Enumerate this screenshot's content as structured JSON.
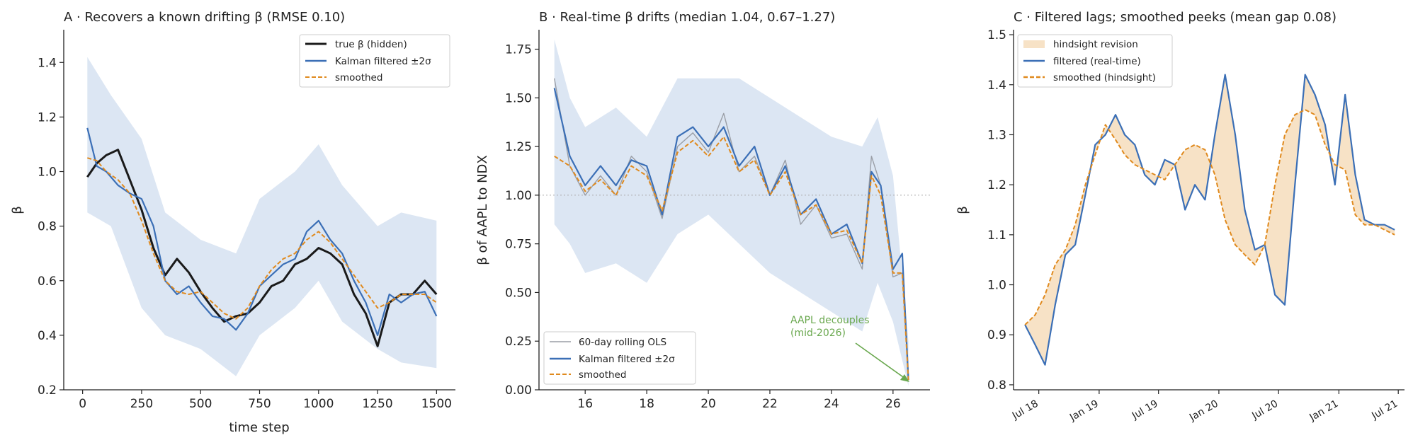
{
  "colors": {
    "true_line": "#1a1a1a",
    "kalman": "#3b6fb6",
    "band": "#dce6f3",
    "smoothed": "#e08a1e",
    "ols": "#9a9ea6",
    "revision": "#f7e2c6",
    "annotation": "#6aa84f",
    "reference": "#aaaaaa",
    "axis": "#222222"
  },
  "chart_data": [
    {
      "type": "line",
      "title": "A · Recovers a known drifting β (RMSE 0.10)",
      "xlabel": "time step",
      "ylabel": "β",
      "xlim": [
        -80,
        1580
      ],
      "ylim": [
        0.2,
        1.52
      ],
      "xticks": [
        0,
        250,
        500,
        750,
        1000,
        1250,
        1500
      ],
      "xtick_labels": [
        "0",
        "250",
        "500",
        "750",
        "1000",
        "1250",
        "1500"
      ],
      "yticks": [
        0.2,
        0.4,
        0.6,
        0.8,
        1.0,
        1.2,
        1.4
      ],
      "ytick_labels": [
        "0.2",
        "0.4",
        "0.6",
        "0.8",
        "1.0",
        "1.2",
        "1.4"
      ],
      "grid": false,
      "legend_position": "top-right",
      "band": {
        "name": "±2σ band",
        "x": [
          20,
          120,
          250,
          350,
          500,
          650,
          750,
          900,
          1000,
          1100,
          1250,
          1350,
          1500
        ],
        "lower": [
          0.85,
          0.8,
          0.5,
          0.4,
          0.35,
          0.25,
          0.4,
          0.5,
          0.6,
          0.45,
          0.35,
          0.3,
          0.28
        ],
        "upper": [
          1.42,
          1.28,
          1.12,
          0.85,
          0.75,
          0.7,
          0.9,
          1.0,
          1.1,
          0.95,
          0.8,
          0.85,
          0.82
        ]
      },
      "series": [
        {
          "name": "true β (hidden)",
          "style": "solid-thick",
          "x": [
            20,
            60,
            100,
            150,
            200,
            250,
            300,
            350,
            400,
            450,
            500,
            550,
            600,
            650,
            700,
            750,
            800,
            850,
            900,
            950,
            1000,
            1050,
            1100,
            1150,
            1200,
            1250,
            1300,
            1350,
            1400,
            1450,
            1500
          ],
          "values": [
            0.98,
            1.03,
            1.06,
            1.08,
            0.97,
            0.86,
            0.72,
            0.62,
            0.68,
            0.63,
            0.56,
            0.5,
            0.45,
            0.47,
            0.48,
            0.52,
            0.58,
            0.6,
            0.66,
            0.68,
            0.72,
            0.7,
            0.66,
            0.55,
            0.48,
            0.36,
            0.52,
            0.55,
            0.55,
            0.6,
            0.55
          ]
        },
        {
          "name": "Kalman filtered ±2σ",
          "style": "solid",
          "x": [
            20,
            60,
            100,
            150,
            200,
            250,
            300,
            350,
            400,
            450,
            500,
            550,
            600,
            650,
            700,
            750,
            800,
            850,
            900,
            950,
            1000,
            1050,
            1100,
            1150,
            1200,
            1250,
            1300,
            1350,
            1400,
            1450,
            1500
          ],
          "values": [
            1.16,
            1.02,
            1.0,
            0.95,
            0.92,
            0.9,
            0.8,
            0.6,
            0.55,
            0.58,
            0.52,
            0.47,
            0.46,
            0.42,
            0.48,
            0.58,
            0.62,
            0.66,
            0.68,
            0.78,
            0.82,
            0.75,
            0.7,
            0.6,
            0.52,
            0.4,
            0.55,
            0.52,
            0.55,
            0.56,
            0.47
          ]
        },
        {
          "name": "smoothed",
          "style": "dashed",
          "x": [
            20,
            60,
            100,
            150,
            200,
            250,
            300,
            350,
            400,
            450,
            500,
            550,
            600,
            650,
            700,
            750,
            800,
            850,
            900,
            950,
            1000,
            1050,
            1100,
            1150,
            1200,
            1250,
            1300,
            1350,
            1400,
            1450,
            1500
          ],
          "values": [
            1.05,
            1.04,
            1.0,
            0.97,
            0.92,
            0.82,
            0.7,
            0.6,
            0.56,
            0.55,
            0.56,
            0.52,
            0.48,
            0.46,
            0.5,
            0.58,
            0.64,
            0.68,
            0.7,
            0.75,
            0.78,
            0.74,
            0.68,
            0.62,
            0.56,
            0.5,
            0.52,
            0.55,
            0.55,
            0.55,
            0.52
          ]
        }
      ]
    },
    {
      "type": "line",
      "title": "B · Real-time β drifts (median 1.04, 0.67–1.27)",
      "xlabel": "",
      "ylabel": "β of AAPL to NDX",
      "xlim": [
        14.5,
        27.2
      ],
      "ylim": [
        0.0,
        1.85
      ],
      "xticks": [
        16,
        18,
        20,
        22,
        24,
        26
      ],
      "xtick_labels": [
        "16",
        "18",
        "20",
        "22",
        "24",
        "26"
      ],
      "yticks": [
        0.0,
        0.25,
        0.5,
        0.75,
        1.0,
        1.25,
        1.5,
        1.75
      ],
      "ytick_labels": [
        "0.00",
        "0.25",
        "0.50",
        "0.75",
        "1.00",
        "1.25",
        "1.50",
        "1.75"
      ],
      "grid": false,
      "reference_line": 1.0,
      "legend_position": "bottom-left",
      "annotation": {
        "text_lines": [
          "AAPL decouples",
          "(mid-2026)"
        ],
        "point": [
          26.5,
          0.04
        ],
        "text_at": [
          22.6,
          0.32
        ]
      },
      "band": {
        "name": "±2σ band",
        "x": [
          15.0,
          15.5,
          16.0,
          17.0,
          18.0,
          19.0,
          20.0,
          21.0,
          22.0,
          23.0,
          24.0,
          25.0,
          25.5,
          26.0,
          26.5
        ],
        "lower": [
          0.85,
          0.75,
          0.6,
          0.65,
          0.55,
          0.8,
          0.9,
          0.75,
          0.6,
          0.5,
          0.4,
          0.3,
          0.55,
          0.35,
          0.02
        ],
        "upper": [
          1.8,
          1.5,
          1.35,
          1.45,
          1.3,
          1.6,
          1.6,
          1.6,
          1.5,
          1.4,
          1.3,
          1.25,
          1.4,
          1.1,
          0.25
        ]
      },
      "series": [
        {
          "name": "60-day rolling OLS",
          "style": "thin",
          "x": [
            15.0,
            15.5,
            16.0,
            16.5,
            17.0,
            17.5,
            18.0,
            18.5,
            19.0,
            19.5,
            20.0,
            20.5,
            21.0,
            21.5,
            22.0,
            22.5,
            23.0,
            23.5,
            24.0,
            24.5,
            25.0,
            25.3,
            25.6,
            26.0,
            26.3,
            26.5
          ],
          "values": [
            1.6,
            1.15,
            1.0,
            1.1,
            1.0,
            1.2,
            1.12,
            0.88,
            1.25,
            1.32,
            1.22,
            1.42,
            1.12,
            1.2,
            1.0,
            1.18,
            0.85,
            0.95,
            0.78,
            0.8,
            0.62,
            1.2,
            1.05,
            0.58,
            0.6,
            0.06
          ]
        },
        {
          "name": "Kalman filtered ±2σ",
          "style": "solid",
          "x": [
            15.0,
            15.5,
            16.0,
            16.5,
            17.0,
            17.5,
            18.0,
            18.5,
            19.0,
            19.5,
            20.0,
            20.5,
            21.0,
            21.5,
            22.0,
            22.5,
            23.0,
            23.5,
            24.0,
            24.5,
            25.0,
            25.3,
            25.6,
            26.0,
            26.3,
            26.5
          ],
          "values": [
            1.55,
            1.2,
            1.05,
            1.15,
            1.05,
            1.18,
            1.15,
            0.9,
            1.3,
            1.35,
            1.25,
            1.35,
            1.15,
            1.25,
            1.0,
            1.15,
            0.9,
            0.98,
            0.8,
            0.85,
            0.65,
            1.12,
            1.05,
            0.62,
            0.7,
            0.05
          ]
        },
        {
          "name": "smoothed",
          "style": "dashed",
          "x": [
            15.0,
            15.5,
            16.0,
            16.5,
            17.0,
            17.5,
            18.0,
            18.5,
            19.0,
            19.5,
            20.0,
            20.5,
            21.0,
            21.5,
            22.0,
            22.5,
            23.0,
            23.5,
            24.0,
            24.5,
            25.0,
            25.3,
            25.6,
            26.0,
            26.3,
            26.5
          ],
          "values": [
            1.2,
            1.15,
            1.02,
            1.08,
            1.0,
            1.15,
            1.1,
            0.92,
            1.22,
            1.28,
            1.2,
            1.3,
            1.12,
            1.18,
            1.0,
            1.12,
            0.9,
            0.95,
            0.8,
            0.82,
            0.65,
            1.1,
            1.0,
            0.6,
            0.6,
            0.05
          ]
        }
      ]
    },
    {
      "type": "line",
      "title": "C · Filtered lags; smoothed peeks (mean gap 0.08)",
      "xlabel": "",
      "ylabel": "β",
      "xlim": [
        "2018-04-15",
        "2021-07-20"
      ],
      "ylim": [
        0.79,
        1.51
      ],
      "xticks": [
        "2018-07-01",
        "2019-01-01",
        "2019-07-01",
        "2020-01-01",
        "2020-07-01",
        "2021-01-01",
        "2021-07-01"
      ],
      "xtick_labels": [
        "Jul 18",
        "Jan 19",
        "Jul 19",
        "Jan 20",
        "Jul 20",
        "Jan 21",
        "Jul 21"
      ],
      "yticks": [
        0.8,
        0.9,
        1.0,
        1.1,
        1.2,
        1.3,
        1.4,
        1.5
      ],
      "ytick_labels": [
        "0.8",
        "0.9",
        "1.0",
        "1.1",
        "1.2",
        "1.3",
        "1.4",
        "1.5"
      ],
      "grid": false,
      "legend_position": "top-left",
      "revision_fill": {
        "name": "hindsight revision"
      },
      "series": [
        {
          "name": "filtered (real-time)",
          "style": "solid",
          "x": [
            "2018-05-20",
            "2018-06-20",
            "2018-07-20",
            "2018-08-20",
            "2018-09-20",
            "2018-10-20",
            "2018-11-20",
            "2018-12-20",
            "2019-01-20",
            "2019-02-20",
            "2019-03-20",
            "2019-04-20",
            "2019-05-20",
            "2019-06-20",
            "2019-07-20",
            "2019-08-20",
            "2019-09-20",
            "2019-10-20",
            "2019-11-20",
            "2019-12-20",
            "2020-01-20",
            "2020-02-20",
            "2020-03-20",
            "2020-04-20",
            "2020-05-20",
            "2020-06-20",
            "2020-07-20",
            "2020-08-20",
            "2020-09-20",
            "2020-10-20",
            "2020-11-20",
            "2020-12-20",
            "2021-01-20",
            "2021-02-20",
            "2021-03-20",
            "2021-04-20",
            "2021-05-20",
            "2021-06-20"
          ],
          "values": [
            0.92,
            0.88,
            0.84,
            0.96,
            1.06,
            1.08,
            1.18,
            1.28,
            1.3,
            1.34,
            1.3,
            1.28,
            1.22,
            1.2,
            1.25,
            1.24,
            1.15,
            1.2,
            1.17,
            1.3,
            1.42,
            1.3,
            1.15,
            1.07,
            1.08,
            0.98,
            0.96,
            1.2,
            1.42,
            1.38,
            1.32,
            1.2,
            1.38,
            1.22,
            1.13,
            1.12,
            1.12,
            1.11
          ]
        },
        {
          "name": "smoothed (hindsight)",
          "style": "dashed",
          "x": [
            "2018-05-20",
            "2018-06-20",
            "2018-07-20",
            "2018-08-20",
            "2018-09-20",
            "2018-10-20",
            "2018-11-20",
            "2018-12-20",
            "2019-01-20",
            "2019-02-20",
            "2019-03-20",
            "2019-04-20",
            "2019-05-20",
            "2019-06-20",
            "2019-07-20",
            "2019-08-20",
            "2019-09-20",
            "2019-10-20",
            "2019-11-20",
            "2019-12-20",
            "2020-01-20",
            "2020-02-20",
            "2020-03-20",
            "2020-04-20",
            "2020-05-20",
            "2020-06-20",
            "2020-07-20",
            "2020-08-20",
            "2020-09-20",
            "2020-10-20",
            "2020-11-20",
            "2020-12-20",
            "2021-01-20",
            "2021-02-20",
            "2021-03-20",
            "2021-04-20",
            "2021-05-20",
            "2021-06-20"
          ],
          "values": [
            0.92,
            0.94,
            0.98,
            1.04,
            1.07,
            1.12,
            1.2,
            1.26,
            1.32,
            1.29,
            1.26,
            1.24,
            1.23,
            1.22,
            1.21,
            1.24,
            1.27,
            1.28,
            1.27,
            1.22,
            1.13,
            1.08,
            1.06,
            1.04,
            1.08,
            1.2,
            1.3,
            1.34,
            1.35,
            1.34,
            1.28,
            1.24,
            1.23,
            1.14,
            1.12,
            1.12,
            1.11,
            1.1
          ]
        }
      ]
    }
  ]
}
